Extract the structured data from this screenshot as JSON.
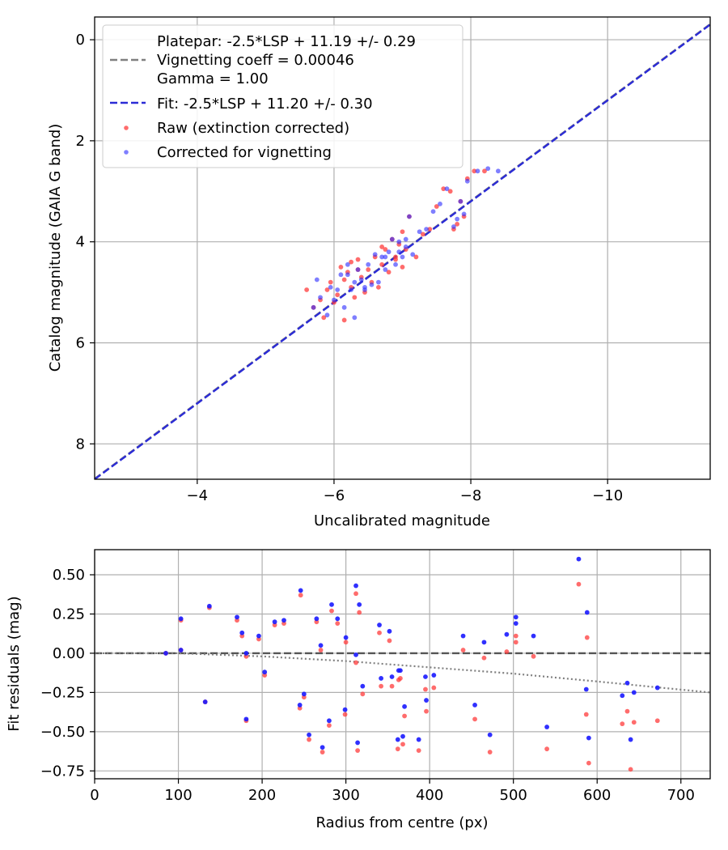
{
  "chart_data": [
    {
      "type": "scatter",
      "xlabel": "Uncalibrated magnitude",
      "ylabel": "Catalog magnitude (GAIA G band)",
      "xlim": [
        -2.5,
        -11.5
      ],
      "ylim": [
        8.7,
        -0.45
      ],
      "xticks": [
        -4,
        -6,
        -8,
        -10
      ],
      "xtick_labels": [
        "−4",
        "−6",
        "−8",
        "−10"
      ],
      "yticks": [
        0,
        2,
        4,
        6,
        8
      ],
      "ytick_labels": [
        "0",
        "2",
        "4",
        "6",
        "8"
      ],
      "grid": true,
      "legend_position": "top-left",
      "legend": {
        "platepar_lines": [
          "Platepar: -2.5*LSP + 11.19 +/- 0.29",
          "Vignetting coeff = 0.00046",
          "Gamma = 1.00"
        ],
        "fit_label": "Fit: -2.5*LSP + 11.20 +/- 0.30",
        "raw_label": "Raw (extinction corrected)",
        "corrected_label": "Corrected for vignetting"
      },
      "colors": {
        "platepar_line": "#808080",
        "fit_line": "#2b2bd6",
        "raw": "#ff3b3b",
        "corrected": "#2a2aff",
        "grid": "#b0b0b0"
      },
      "platepar_line": {
        "slope": 1,
        "intercept": 11.19
      },
      "fit_line": {
        "slope": 1,
        "intercept": 11.2
      },
      "series": [
        {
          "name": "Raw (extinction corrected)",
          "x": [
            -5.6,
            -5.7,
            -5.8,
            -5.85,
            -5.9,
            -5.95,
            -6.0,
            -6.05,
            -6.1,
            -6.15,
            -6.2,
            -6.25,
            -6.3,
            -6.35,
            -6.4,
            -6.45,
            -6.5,
            -6.55,
            -6.6,
            -6.65,
            -6.7,
            -6.75,
            -6.8,
            -6.85,
            -6.9,
            -6.95,
            -7.0,
            -7.05,
            -7.1,
            -7.2,
            -7.3,
            -7.4,
            -7.5,
            -7.6,
            -7.7,
            -7.75,
            -7.8,
            -7.85,
            -7.9,
            -7.95,
            -8.05,
            -8.2,
            -6.15,
            -6.25,
            -6.35,
            -6.7,
            -6.9,
            -7.0
          ],
          "y": [
            4.95,
            5.3,
            5.15,
            5.5,
            4.95,
            4.8,
            5.2,
            5.05,
            4.5,
            5.55,
            4.6,
            4.4,
            5.1,
            4.35,
            4.7,
            5.0,
            4.55,
            4.8,
            4.3,
            4.9,
            4.45,
            4.15,
            4.6,
            3.95,
            4.3,
            4.05,
            4.5,
            4.15,
            3.5,
            4.3,
            3.85,
            3.75,
            3.3,
            2.95,
            3.0,
            3.75,
            3.65,
            3.2,
            3.5,
            2.75,
            2.6,
            2.6,
            4.75,
            4.9,
            4.55,
            4.1,
            4.35,
            3.8
          ]
        },
        {
          "name": "Corrected for vignetting",
          "x": [
            -5.7,
            -5.75,
            -5.8,
            -5.9,
            -5.95,
            -6.0,
            -6.05,
            -6.1,
            -6.15,
            -6.2,
            -6.25,
            -6.3,
            -6.35,
            -6.4,
            -6.45,
            -6.5,
            -6.55,
            -6.6,
            -6.65,
            -6.7,
            -6.75,
            -6.8,
            -6.85,
            -6.9,
            -6.95,
            -7.0,
            -7.05,
            -7.1,
            -7.15,
            -7.25,
            -7.35,
            -7.45,
            -7.55,
            -7.65,
            -7.75,
            -7.8,
            -7.85,
            -7.9,
            -7.95,
            -8.1,
            -8.25,
            -8.4,
            -6.2,
            -6.3,
            -6.45,
            -6.75,
            -6.95,
            -7.05
          ],
          "y": [
            5.3,
            4.75,
            5.1,
            5.45,
            4.9,
            5.15,
            4.95,
            4.65,
            5.3,
            4.45,
            4.95,
            5.5,
            4.55,
            4.75,
            4.95,
            4.45,
            4.85,
            4.25,
            4.8,
            4.3,
            4.55,
            4.2,
            3.95,
            4.45,
            4.0,
            4.3,
            4.1,
            3.5,
            4.25,
            3.8,
            3.75,
            3.4,
            3.25,
            2.95,
            3.7,
            3.55,
            3.2,
            3.45,
            2.8,
            2.6,
            2.55,
            2.6,
            4.65,
            4.8,
            4.9,
            4.3,
            4.2,
            3.95
          ]
        }
      ]
    },
    {
      "type": "scatter",
      "xlabel": "Radius from centre (px)",
      "ylabel": "Fit residuals (mag)",
      "xlim": [
        0,
        735
      ],
      "ylim": [
        -0.8,
        0.66
      ],
      "xticks": [
        0,
        100,
        200,
        300,
        400,
        500,
        600,
        700
      ],
      "xtick_labels": [
        "0",
        "100",
        "200",
        "300",
        "400",
        "500",
        "600",
        "700"
      ],
      "yticks": [
        0.5,
        0.25,
        0.0,
        -0.25,
        -0.5,
        -0.75
      ],
      "ytick_labels": [
        "0.50",
        "0.25",
        "0.00",
        "−0.25",
        "−0.50",
        "−0.75"
      ],
      "grid": true,
      "colors": {
        "zero_line": "#555555",
        "vignetting_curve": "#808080",
        "raw": "#ff3b3b",
        "corrected": "#1a1aff",
        "grid": "#b0b0b0"
      },
      "zero_line": 0.0,
      "vignetting_curve": {
        "x": [
          0,
          100,
          200,
          300,
          400,
          500,
          600,
          735
        ],
        "y": [
          0.0,
          0.0,
          -0.02,
          -0.05,
          -0.09,
          -0.13,
          -0.18,
          -0.25
        ]
      },
      "series": [
        {
          "name": "Raw (extinction corrected)",
          "x": [
            85,
            103,
            103,
            132,
            137,
            170,
            176,
            181,
            181,
            196,
            203,
            215,
            226,
            245,
            246,
            250,
            256,
            265,
            270,
            272,
            280,
            283,
            290,
            299,
            300,
            312,
            312,
            314,
            316,
            320,
            340,
            342,
            352,
            355,
            362,
            363,
            365,
            368,
            370,
            387,
            395,
            396,
            405,
            440,
            454,
            465,
            472,
            492,
            503,
            503,
            524,
            540,
            578,
            587,
            588,
            590,
            630,
            636,
            640,
            644,
            672
          ],
          "y": [
            0.0,
            0.02,
            0.21,
            -0.31,
            0.29,
            0.21,
            0.11,
            -0.43,
            -0.02,
            0.09,
            -0.14,
            0.18,
            0.19,
            -0.35,
            0.37,
            -0.28,
            -0.55,
            0.2,
            0.02,
            -0.63,
            -0.46,
            0.27,
            0.19,
            -0.39,
            0.07,
            0.38,
            -0.06,
            -0.62,
            0.26,
            -0.26,
            0.13,
            -0.21,
            0.08,
            -0.21,
            -0.61,
            -0.17,
            -0.16,
            -0.58,
            -0.4,
            -0.62,
            -0.23,
            -0.37,
            -0.22,
            0.02,
            -0.42,
            -0.03,
            -0.63,
            0.01,
            0.11,
            0.07,
            -0.02,
            -0.61,
            0.44,
            -0.39,
            0.1,
            -0.7,
            -0.45,
            -0.37,
            -0.74,
            -0.44,
            -0.43
          ]
        },
        {
          "name": "Corrected for vignetting",
          "x": [
            85,
            103,
            103,
            132,
            137,
            170,
            176,
            181,
            181,
            196,
            203,
            215,
            226,
            245,
            246,
            250,
            256,
            265,
            270,
            272,
            280,
            283,
            290,
            299,
            300,
            312,
            312,
            314,
            316,
            320,
            340,
            342,
            352,
            355,
            362,
            363,
            365,
            368,
            370,
            387,
            395,
            396,
            405,
            440,
            454,
            465,
            472,
            492,
            503,
            503,
            524,
            540,
            578,
            587,
            588,
            590,
            630,
            636,
            640,
            644,
            672
          ],
          "y": [
            0.0,
            0.02,
            0.22,
            -0.31,
            0.3,
            0.23,
            0.13,
            -0.42,
            0.0,
            0.11,
            -0.12,
            0.2,
            0.21,
            -0.33,
            0.4,
            -0.26,
            -0.52,
            0.22,
            0.05,
            -0.6,
            -0.43,
            0.31,
            0.22,
            -0.36,
            0.1,
            0.43,
            -0.01,
            -0.57,
            0.31,
            -0.21,
            0.18,
            -0.16,
            0.14,
            -0.15,
            -0.55,
            -0.11,
            -0.11,
            -0.53,
            -0.34,
            -0.55,
            -0.15,
            -0.3,
            -0.14,
            0.11,
            -0.33,
            0.07,
            -0.52,
            0.12,
            0.23,
            0.19,
            0.11,
            -0.47,
            0.6,
            -0.23,
            0.26,
            -0.54,
            -0.27,
            -0.19,
            -0.55,
            -0.25,
            -0.22
          ]
        }
      ]
    }
  ]
}
